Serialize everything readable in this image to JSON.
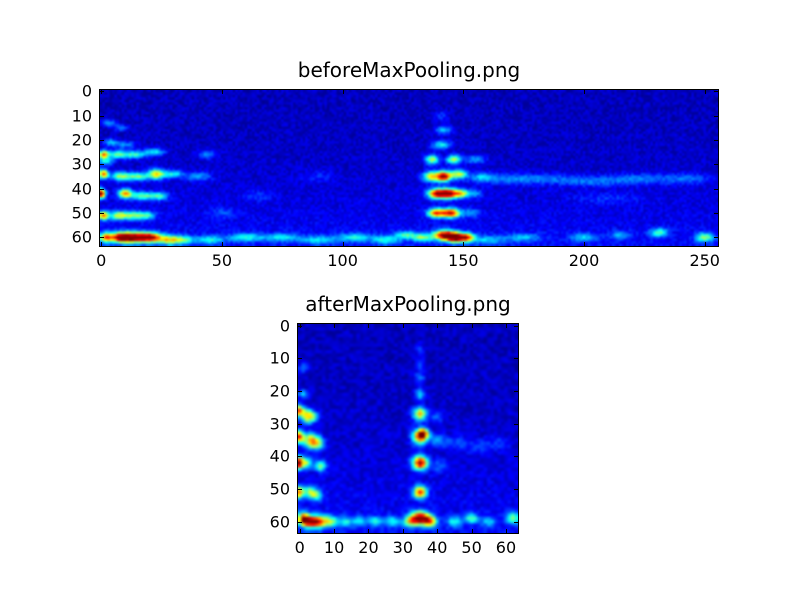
{
  "figure": {
    "background_color": "#ffffff",
    "text_color": "#000000",
    "spine_color": "#000000"
  },
  "chart_data": [
    {
      "type": "heatmap",
      "title": "beforeMaxPooling.png",
      "colormap": "jet",
      "grid_cols": 256,
      "grid_rows": 64,
      "xticks": [
        0,
        50,
        100,
        150,
        200,
        250
      ],
      "yticks": [
        0,
        10,
        20,
        30,
        40,
        50,
        60
      ],
      "xlabel": "",
      "ylabel": "",
      "value_range": [
        0,
        1
      ],
      "background_value": 0.02,
      "noise_amplitude": 0.08,
      "noise_seed": 42,
      "bottom_gradient": 0.07,
      "feature_format": [
        "x",
        "y",
        "sigma_x",
        "sigma_y",
        "amplitude"
      ],
      "features": [
        [
          1,
          26,
          1.5,
          1.2,
          0.65
        ],
        [
          7,
          26,
          3,
          1.2,
          0.4
        ],
        [
          14,
          26,
          3,
          1.1,
          0.32
        ],
        [
          22,
          25,
          3,
          1.1,
          0.3
        ],
        [
          1,
          34,
          1.4,
          1.3,
          0.7
        ],
        [
          8,
          35,
          2.5,
          1.3,
          0.45
        ],
        [
          15,
          35,
          3,
          1.2,
          0.42
        ],
        [
          23,
          34,
          2.5,
          1.4,
          0.58
        ],
        [
          30,
          34,
          2.5,
          1.1,
          0.3
        ],
        [
          0,
          42,
          1.2,
          1.3,
          0.92
        ],
        [
          10,
          42,
          2,
          1.3,
          0.65
        ],
        [
          17,
          43,
          3,
          1.2,
          0.4
        ],
        [
          24,
          43,
          2.5,
          1.1,
          0.35
        ],
        [
          1,
          51,
          1.5,
          1.2,
          0.65
        ],
        [
          7,
          51,
          2.5,
          1.2,
          0.45
        ],
        [
          13,
          51,
          3,
          1.2,
          0.4
        ],
        [
          19,
          51,
          2.5,
          1.1,
          0.32
        ],
        [
          2,
          60,
          2,
          1.4,
          0.6
        ],
        [
          8,
          60,
          3,
          1.4,
          0.75
        ],
        [
          14,
          60,
          4,
          1.5,
          0.85
        ],
        [
          21,
          60,
          3,
          1.4,
          0.7
        ],
        [
          28,
          61,
          3,
          1.3,
          0.5
        ],
        [
          34,
          61,
          3,
          1.2,
          0.35
        ],
        [
          3,
          13,
          2,
          1,
          0.22
        ],
        [
          8,
          15,
          2,
          1,
          0.18
        ],
        [
          4,
          21,
          2,
          1,
          0.25
        ],
        [
          10,
          22,
          3,
          1,
          0.2
        ],
        [
          2,
          29,
          2,
          1,
          0.3
        ],
        [
          141,
          10,
          2,
          1.5,
          0.12
        ],
        [
          142,
          16,
          2.5,
          1.2,
          0.25
        ],
        [
          141,
          22,
          3,
          1.2,
          0.3
        ],
        [
          137,
          28,
          2,
          1.3,
          0.5
        ],
        [
          146,
          28,
          2,
          1.3,
          0.5
        ],
        [
          155,
          28,
          3,
          1.2,
          0.22
        ],
        [
          137,
          35,
          2.5,
          1.5,
          0.55
        ],
        [
          142,
          35,
          2,
          1.5,
          0.85
        ],
        [
          148,
          34,
          2.5,
          1.3,
          0.5
        ],
        [
          158,
          35,
          3,
          1.3,
          0.18
        ],
        [
          139,
          42,
          2.5,
          1.4,
          0.8
        ],
        [
          144,
          42,
          2.5,
          1.4,
          0.88
        ],
        [
          149,
          42,
          2,
          1.2,
          0.5
        ],
        [
          154,
          42,
          2.5,
          1.2,
          0.22
        ],
        [
          139,
          50,
          2.5,
          1.3,
          0.72
        ],
        [
          145,
          50,
          2.5,
          1.3,
          0.78
        ],
        [
          153,
          50,
          2.5,
          1.2,
          0.2
        ],
        [
          142,
          59,
          3,
          1.4,
          0.8
        ],
        [
          147,
          60,
          3,
          1.4,
          0.95
        ],
        [
          152,
          60,
          2,
          1.2,
          0.5
        ],
        [
          133,
          60,
          3,
          1.2,
          0.4
        ],
        [
          126,
          59,
          3,
          1.1,
          0.32
        ],
        [
          165,
          36,
          9,
          1.5,
          0.15
        ],
        [
          183,
          36,
          9,
          1.5,
          0.14
        ],
        [
          203,
          37,
          9,
          1.5,
          0.14
        ],
        [
          223,
          36,
          9,
          1.5,
          0.16
        ],
        [
          243,
          36,
          7,
          1.5,
          0.14
        ],
        [
          210,
          44,
          10,
          1.5,
          0.08
        ],
        [
          231,
          58,
          2.5,
          1.2,
          0.35
        ],
        [
          250,
          60,
          2.5,
          1.3,
          0.42
        ],
        [
          200,
          60,
          4,
          1.2,
          0.22
        ],
        [
          215,
          59,
          3,
          1.2,
          0.18
        ],
        [
          45,
          61,
          4,
          1.2,
          0.28
        ],
        [
          60,
          60,
          5,
          1.2,
          0.28
        ],
        [
          75,
          60,
          5,
          1.2,
          0.26
        ],
        [
          90,
          61,
          5,
          1.2,
          0.24
        ],
        [
          105,
          60,
          5,
          1.2,
          0.28
        ],
        [
          118,
          61,
          4,
          1.2,
          0.28
        ],
        [
          160,
          61,
          5,
          1.2,
          0.22
        ],
        [
          175,
          60,
          5,
          1.2,
          0.2
        ],
        [
          50,
          50,
          4,
          1.5,
          0.1
        ],
        [
          65,
          43,
          4,
          1.5,
          0.09
        ],
        [
          90,
          35,
          5,
          1.5,
          0.08
        ],
        [
          40,
          35,
          4,
          1.3,
          0.2
        ],
        [
          44,
          26,
          3,
          1.2,
          0.18
        ]
      ]
    },
    {
      "type": "heatmap",
      "title": "afterMaxPooling.png",
      "colormap": "jet",
      "grid_cols": 64,
      "grid_rows": 64,
      "xticks": [
        0,
        10,
        20,
        30,
        40,
        50,
        60
      ],
      "yticks": [
        0,
        10,
        20,
        30,
        40,
        50,
        60
      ],
      "xlabel": "",
      "ylabel": "",
      "value_range": [
        0,
        1
      ],
      "background_value": 0.02,
      "noise_amplitude": 0.08,
      "noise_seed": 7,
      "bottom_gradient": 0.07,
      "feature_format": [
        "x",
        "y",
        "sigma_x",
        "sigma_y",
        "amplitude"
      ],
      "features": [
        [
          0,
          26,
          0.8,
          1.2,
          0.65
        ],
        [
          2,
          27,
          1.2,
          1.2,
          0.45
        ],
        [
          4,
          28,
          1.2,
          1.2,
          0.35
        ],
        [
          0,
          34,
          0.8,
          1.3,
          0.7
        ],
        [
          3,
          35,
          1.6,
          1.6,
          0.5
        ],
        [
          5,
          36,
          1.5,
          1.4,
          0.42
        ],
        [
          0,
          42,
          0.7,
          1.3,
          0.92
        ],
        [
          2,
          42,
          1,
          1.2,
          0.45
        ],
        [
          6,
          43,
          1.2,
          1.2,
          0.4
        ],
        [
          0,
          51,
          0.8,
          1.2,
          0.65
        ],
        [
          3,
          51,
          1.3,
          1.2,
          0.45
        ],
        [
          5,
          52,
          1.2,
          1.1,
          0.35
        ],
        [
          1,
          59,
          1,
          1.3,
          0.7
        ],
        [
          3,
          60,
          1.6,
          1.3,
          0.85
        ],
        [
          6,
          60,
          1.5,
          1.3,
          0.6
        ],
        [
          9,
          60,
          1.2,
          1.2,
          0.4
        ],
        [
          1,
          13,
          1,
          1,
          0.2
        ],
        [
          1,
          21,
          1,
          1,
          0.25
        ],
        [
          2,
          29,
          1,
          1,
          0.28
        ],
        [
          35,
          7,
          0.9,
          1.3,
          0.1
        ],
        [
          35,
          12,
          1,
          1.3,
          0.15
        ],
        [
          35,
          16,
          1,
          1.2,
          0.2
        ],
        [
          35,
          21,
          1,
          1.2,
          0.3
        ],
        [
          35,
          27,
          1.4,
          1.4,
          0.6
        ],
        [
          35,
          34,
          1.5,
          1.6,
          0.75
        ],
        [
          36,
          33,
          1,
          1,
          0.6
        ],
        [
          35,
          42,
          1.5,
          1.5,
          0.9
        ],
        [
          35,
          51,
          1.3,
          1.3,
          0.75
        ],
        [
          35,
          59,
          1.9,
          1.4,
          0.95
        ],
        [
          38,
          60,
          1.3,
          1.2,
          0.55
        ],
        [
          32,
          60,
          1.3,
          1.2,
          0.42
        ],
        [
          40,
          28,
          1.3,
          1.2,
          0.15
        ],
        [
          40,
          35,
          1.6,
          1.3,
          0.2
        ],
        [
          41,
          43,
          1.5,
          1.3,
          0.15
        ],
        [
          45,
          36,
          2.5,
          1.5,
          0.12
        ],
        [
          52,
          37,
          2.5,
          1.5,
          0.1
        ],
        [
          58,
          36,
          2,
          1.5,
          0.1
        ],
        [
          13,
          60,
          1.5,
          1.1,
          0.28
        ],
        [
          17,
          60,
          1.5,
          1.1,
          0.24
        ],
        [
          22,
          60,
          1.5,
          1.1,
          0.28
        ],
        [
          27,
          60,
          1.5,
          1.1,
          0.28
        ],
        [
          45,
          60,
          1.5,
          1.1,
          0.28
        ],
        [
          50,
          59,
          1.3,
          1.1,
          0.35
        ],
        [
          55,
          60,
          1.5,
          1.1,
          0.22
        ],
        [
          62,
          59,
          1.3,
          1.2,
          0.4
        ]
      ]
    }
  ]
}
